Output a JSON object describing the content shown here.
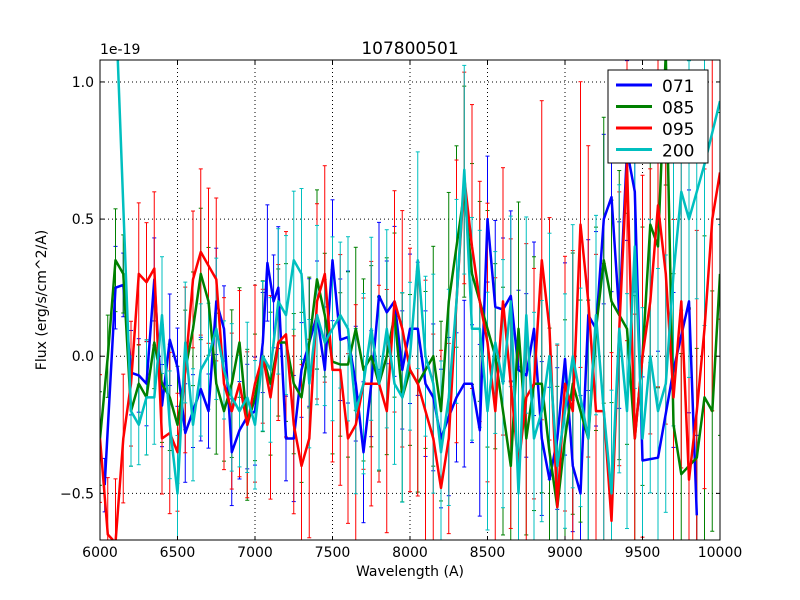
{
  "chart_data": {
    "type": "line",
    "title": "107800501",
    "xlabel": "Wavelength (A)",
    "ylabel": "Flux (erg/s/cm^2/A)",
    "y_scale_label": "1e-19",
    "xlim": [
      6000,
      10000
    ],
    "ylim": [
      -0.67,
      1.08
    ],
    "xticks": [
      6000,
      6500,
      7000,
      7500,
      8000,
      8500,
      9000,
      9500,
      10000
    ],
    "xtick_labels": [
      "6000",
      "6500",
      "7000",
      "7500",
      "8000",
      "8500",
      "9000",
      "9500",
      "10000"
    ],
    "yticks": [
      -0.5,
      0.0,
      0.5,
      1.0
    ],
    "ytick_labels": [
      "−0.5",
      "0.0",
      "0.5",
      "1.0"
    ],
    "grid": true,
    "legend_position": "top-right",
    "error_bars": true,
    "series": [
      {
        "name": "071",
        "color": "#0000ff",
        "yerr_range": [
          0.12,
          0.35
        ],
        "x": [
          6030,
          6100,
          6150,
          6200,
          6250,
          6300,
          6350,
          6400,
          6450,
          6500,
          6550,
          6600,
          6650,
          6700,
          6750,
          6800,
          6850,
          6900,
          6950,
          7000,
          7050,
          7080,
          7120,
          7150,
          7200,
          7250,
          7300,
          7350,
          7400,
          7450,
          7500,
          7550,
          7600,
          7650,
          7700,
          7750,
          7800,
          7850,
          7900,
          7950,
          8000,
          8050,
          8100,
          8150,
          8200,
          8250,
          8300,
          8350,
          8400,
          8450,
          8500,
          8550,
          8600,
          8650,
          8700,
          8750,
          8800,
          8850,
          8900,
          8950,
          9000,
          9050,
          9100,
          9150,
          9200,
          9250,
          9300,
          9350,
          9400,
          9450,
          9500,
          9600,
          9700,
          9800,
          9850
        ],
        "y": [
          -0.47,
          0.25,
          0.26,
          -0.06,
          -0.07,
          -0.1,
          0.28,
          -0.18,
          0.06,
          -0.04,
          -0.28,
          -0.2,
          -0.12,
          -0.2,
          0.2,
          0.1,
          -0.35,
          -0.27,
          -0.22,
          -0.2,
          0.05,
          0.34,
          0.2,
          0.25,
          -0.3,
          -0.3,
          -0.05,
          0.05,
          0.15,
          -0.05,
          0.35,
          0.06,
          0.07,
          -0.1,
          -0.35,
          -0.1,
          0.22,
          0.16,
          0.2,
          -0.05,
          0.1,
          0.1,
          -0.1,
          -0.15,
          -0.3,
          -0.22,
          -0.15,
          -0.1,
          -0.1,
          -0.27,
          0.5,
          0.18,
          0.17,
          0.22,
          -0.05,
          -0.07,
          0.1,
          -0.3,
          -0.45,
          -0.3,
          -0.01,
          -0.4,
          -0.5,
          0.15,
          0.1,
          0.5,
          0.58,
          0.15,
          0.75,
          0.6,
          -0.38,
          -0.37,
          -0.05,
          0.2,
          -0.58
        ]
      },
      {
        "name": "085",
        "color": "#008000",
        "yerr_range": [
          0.15,
          0.5
        ],
        "x": [
          6000,
          6050,
          6100,
          6150,
          6200,
          6250,
          6300,
          6350,
          6400,
          6450,
          6500,
          6550,
          6600,
          6650,
          6700,
          6750,
          6800,
          6850,
          6900,
          6950,
          7000,
          7050,
          7100,
          7150,
          7200,
          7250,
          7300,
          7350,
          7400,
          7450,
          7500,
          7550,
          7600,
          7650,
          7700,
          7750,
          7800,
          7850,
          7900,
          7950,
          8000,
          8050,
          8100,
          8150,
          8200,
          8250,
          8300,
          8350,
          8400,
          8450,
          8500,
          8550,
          8600,
          8650,
          8700,
          8750,
          8800,
          8850,
          8900,
          8950,
          9000,
          9050,
          9100,
          9150,
          9200,
          9250,
          9300,
          9350,
          9400,
          9450,
          9500,
          9550,
          9600,
          9650,
          9700,
          9750,
          9800,
          9850,
          9900,
          9950,
          10000
        ],
        "y": [
          -0.3,
          0.0,
          0.35,
          0.3,
          -0.2,
          -0.1,
          -0.15,
          0.05,
          -0.1,
          -0.15,
          -0.25,
          -0.05,
          0.1,
          0.3,
          0.2,
          -0.1,
          -0.2,
          -0.1,
          0.05,
          -0.25,
          -0.15,
          0.0,
          -0.1,
          0.05,
          0.05,
          -0.1,
          -0.15,
          0.05,
          0.28,
          0.15,
          -0.02,
          -0.03,
          -0.03,
          0.1,
          -0.05,
          0.0,
          -0.1,
          0.0,
          0.15,
          -0.15,
          -0.05,
          -0.1,
          -0.05,
          0.0,
          -0.2,
          0.2,
          0.4,
          0.6,
          0.3,
          0.2,
          0.1,
          0.0,
          -0.2,
          -0.4,
          0.1,
          -0.3,
          -0.1,
          -0.1,
          -0.35,
          -0.55,
          -0.3,
          -0.1,
          -0.2,
          -0.3,
          0.1,
          0.35,
          0.2,
          0.15,
          0.1,
          -0.3,
          0.0,
          0.48,
          0.4,
          1.1,
          -0.25,
          -0.43,
          -0.4,
          -0.37,
          -0.15,
          -0.2,
          0.3
        ]
      },
      {
        "name": "095",
        "color": "#ff0000",
        "yerr_range": [
          0.2,
          0.6
        ],
        "x": [
          6000,
          6050,
          6100,
          6150,
          6200,
          6250,
          6300,
          6350,
          6400,
          6450,
          6500,
          6550,
          6600,
          6650,
          6700,
          6750,
          6800,
          6850,
          6900,
          6950,
          7000,
          7050,
          7100,
          7150,
          7200,
          7250,
          7300,
          7350,
          7400,
          7450,
          7500,
          7550,
          7600,
          7650,
          7700,
          7750,
          7800,
          7850,
          7900,
          7950,
          8000,
          8050,
          8100,
          8150,
          8200,
          8250,
          8300,
          8350,
          8400,
          8450,
          8500,
          8550,
          8600,
          8650,
          8700,
          8750,
          8800,
          8850,
          8900,
          8950,
          9000,
          9050,
          9100,
          9150,
          9200,
          9250,
          9300,
          9350,
          9400,
          9450,
          9500,
          9550,
          9600,
          9650,
          9700,
          9750,
          9800,
          9850,
          9900,
          9950,
          10000
        ],
        "y": [
          -0.3,
          -0.65,
          -0.68,
          -0.3,
          -0.1,
          0.3,
          0.27,
          0.32,
          -0.3,
          -0.28,
          -0.35,
          -0.05,
          0.28,
          0.38,
          0.33,
          0.28,
          -0.1,
          -0.2,
          -0.1,
          -0.25,
          -0.1,
          0.0,
          -0.15,
          0.05,
          0.08,
          -0.25,
          -0.4,
          -0.3,
          0.2,
          0.3,
          -0.05,
          -0.05,
          -0.3,
          -0.25,
          -0.1,
          -0.1,
          -0.1,
          -0.2,
          0.2,
          0.1,
          -0.05,
          -0.1,
          -0.2,
          -0.3,
          -0.48,
          -0.3,
          0.2,
          0.65,
          0.4,
          0.2,
          0.05,
          -0.2,
          0.2,
          -0.1,
          -0.4,
          -0.15,
          -0.1,
          0.35,
          0.1,
          -0.55,
          -0.1,
          -0.2,
          0.48,
          0.2,
          -0.2,
          -0.2,
          -0.6,
          0.1,
          0.7,
          -0.3,
          0.0,
          0.2,
          0.55,
          0.3,
          -0.15,
          0.2,
          -0.45,
          -0.2,
          0.1,
          0.5,
          0.67
        ]
      },
      {
        "name": "200",
        "color": "#00bfbf",
        "yerr_range": [
          0.15,
          0.5
        ],
        "x": [
          6100,
          6200,
          6250,
          6300,
          6350,
          6400,
          6450,
          6500,
          6550,
          6600,
          6650,
          6700,
          6750,
          6800,
          6850,
          6900,
          6950,
          7000,
          7050,
          7100,
          7150,
          7200,
          7250,
          7300,
          7350,
          7400,
          7450,
          7500,
          7550,
          7600,
          7650,
          7700,
          7750,
          7800,
          7850,
          7900,
          7950,
          8000,
          8050,
          8100,
          8150,
          8200,
          8250,
          8300,
          8350,
          8400,
          8450,
          8500,
          8550,
          8600,
          8650,
          8700,
          8750,
          8800,
          8850,
          8900,
          8950,
          9000,
          9050,
          9100,
          9150,
          9200,
          9250,
          9300,
          9350,
          9400,
          9450,
          9500,
          9550,
          9600,
          9650,
          9700,
          9750,
          9800,
          9850,
          9900,
          10000
        ],
        "y": [
          1.3,
          -0.2,
          -0.25,
          -0.15,
          -0.15,
          0.15,
          -0.25,
          -0.5,
          0.05,
          -0.25,
          -0.05,
          0.0,
          0.1,
          -0.05,
          -0.15,
          -0.2,
          -0.15,
          -0.25,
          0.0,
          -0.05,
          0.2,
          0.15,
          0.35,
          0.3,
          -0.1,
          0.15,
          0.05,
          0.1,
          0.15,
          0.1,
          -0.2,
          -0.1,
          0.1,
          -0.1,
          0.1,
          -0.1,
          -0.15,
          0.0,
          0.35,
          0.0,
          -0.1,
          -0.35,
          -0.15,
          0.2,
          0.68,
          0.1,
          0.1,
          -0.2,
          0.05,
          -0.1,
          0.2,
          -0.5,
          0.15,
          -0.3,
          -0.2,
          0.0,
          -0.4,
          -0.2,
          0.0,
          -0.15,
          -0.3,
          0.15,
          -0.2,
          -0.5,
          0.1,
          -0.2,
          0.4,
          -0.3,
          0.0,
          -0.2,
          -0.1,
          0.3,
          0.6,
          0.5,
          0.6,
          0.7,
          0.93
        ]
      }
    ]
  }
}
